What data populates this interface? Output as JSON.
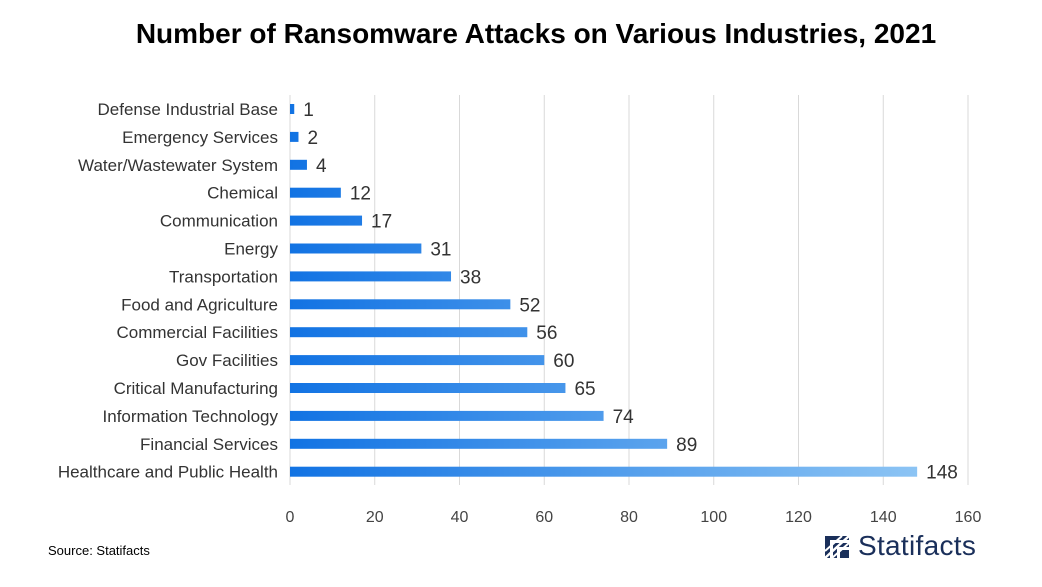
{
  "title": "Number of Ransomware Attacks on Various Industries, 2021",
  "source": "Source: Statifacts",
  "brand": {
    "name": "Statifacts",
    "logo_icon": "statifacts-logo-icon"
  },
  "colors": {
    "bar_start": "#1273e3",
    "bar_end": "#8cc4f4",
    "grid": "#d9d9d9",
    "text": "#333333"
  },
  "chart_data": {
    "type": "bar",
    "orientation": "horizontal",
    "categories": [
      "Defense Industrial Base",
      "Emergency Services",
      "Water/Wastewater System",
      "Chemical",
      "Communication",
      "Energy",
      "Transportation",
      "Food and Agriculture",
      "Commercial Facilities",
      "Gov Facilities",
      "Critical Manufacturing",
      "Information Technology",
      "Financial Services",
      "Healthcare and Public Health"
    ],
    "values": [
      1,
      2,
      4,
      12,
      17,
      31,
      38,
      52,
      56,
      60,
      65,
      74,
      89,
      148
    ],
    "xlim": [
      0,
      160
    ],
    "xticks": [
      0,
      20,
      40,
      60,
      80,
      100,
      120,
      140,
      160
    ],
    "grid": "vertical",
    "data_labels": true,
    "legend": "none"
  }
}
